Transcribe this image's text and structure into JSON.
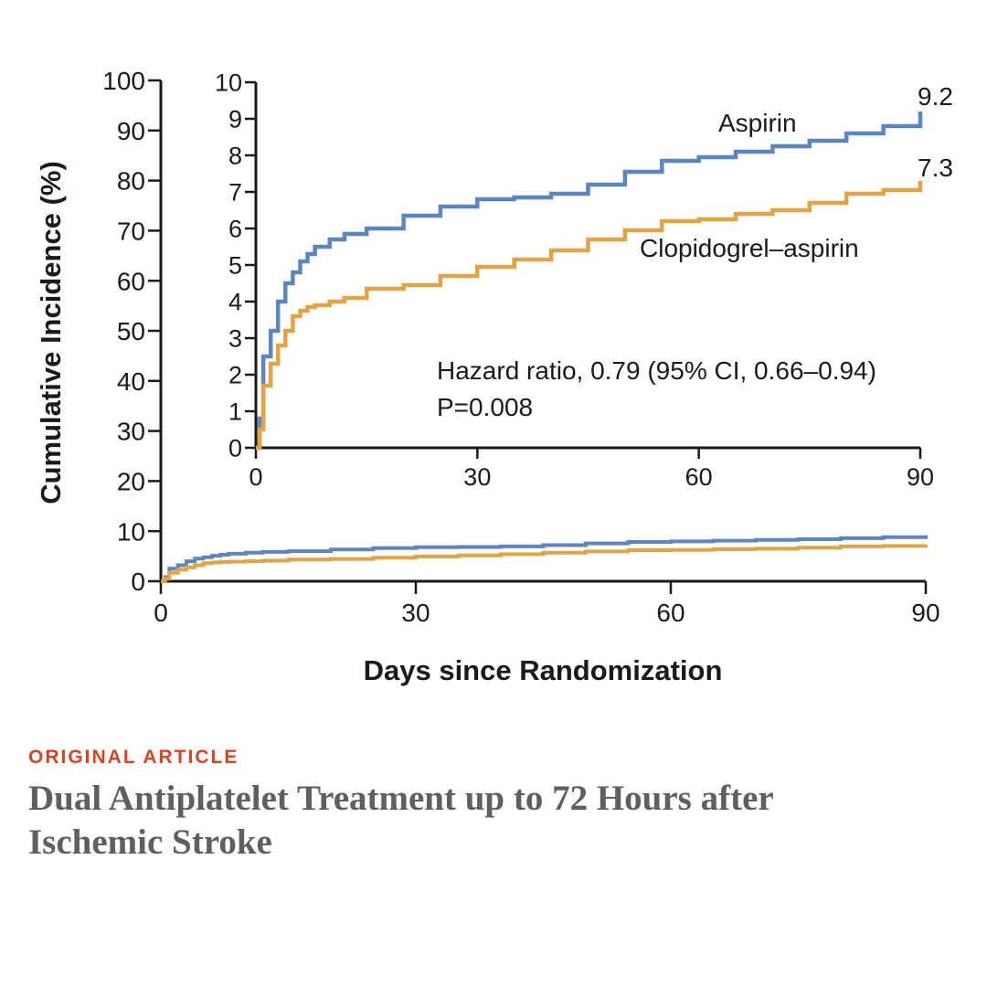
{
  "colors": {
    "aspirin": "#5b86c3",
    "clopidogrel": "#e2a344",
    "kicker": "#d84324",
    "headline": "#5f5f5f"
  },
  "caption": {
    "kicker": "ORIGINAL ARTICLE",
    "headline": "Dual Antiplatelet Treatment up to 72 Hours after Ischemic Stroke"
  },
  "chart_data": {
    "type": "line",
    "title": "",
    "xlabel": "Days since Randomization",
    "ylabel": "Cumulative Incidence (%)",
    "main_axes": {
      "xlim": [
        0,
        90
      ],
      "ylim": [
        0,
        100
      ],
      "xticks": [
        0,
        30,
        60,
        90
      ],
      "yticks": [
        0,
        10,
        20,
        30,
        40,
        50,
        60,
        70,
        80,
        90,
        100
      ]
    },
    "inset_axes": {
      "xlim": [
        0,
        90
      ],
      "ylim": [
        0,
        10
      ],
      "xticks": [
        0,
        30,
        60,
        90
      ],
      "yticks": [
        0,
        1,
        2,
        3,
        4,
        5,
        6,
        7,
        8,
        9,
        10
      ]
    },
    "series": [
      {
        "name": "Aspirin",
        "end_label": "9.2",
        "x": [
          0,
          0.5,
          1,
          2,
          3,
          4,
          5,
          6,
          7,
          8,
          10,
          12,
          15,
          20,
          25,
          30,
          35,
          40,
          45,
          50,
          55,
          60,
          65,
          70,
          75,
          80,
          85,
          90
        ],
        "y": [
          0,
          0.8,
          2.5,
          3.2,
          4.0,
          4.5,
          4.8,
          5.1,
          5.3,
          5.5,
          5.7,
          5.85,
          6.0,
          6.35,
          6.6,
          6.8,
          6.85,
          6.95,
          7.2,
          7.55,
          7.85,
          7.95,
          8.1,
          8.25,
          8.4,
          8.6,
          8.8,
          9.2
        ]
      },
      {
        "name": "Clopidogrel–aspirin",
        "end_label": "7.3",
        "x": [
          0,
          0.5,
          1,
          2,
          3,
          4,
          5,
          6,
          7,
          8,
          10,
          12,
          15,
          20,
          25,
          30,
          35,
          40,
          45,
          50,
          55,
          60,
          65,
          70,
          75,
          80,
          85,
          90
        ],
        "y": [
          0,
          0.5,
          1.7,
          2.3,
          2.8,
          3.2,
          3.6,
          3.75,
          3.85,
          3.9,
          4.0,
          4.1,
          4.35,
          4.45,
          4.7,
          4.95,
          5.15,
          5.4,
          5.7,
          5.95,
          6.2,
          6.25,
          6.4,
          6.5,
          6.7,
          6.95,
          7.05,
          7.3
        ]
      }
    ],
    "annotations": {
      "hazard_ratio": "Hazard ratio, 0.79 (95% CI, 0.66–0.94)",
      "p_value": "P=0.008"
    }
  }
}
